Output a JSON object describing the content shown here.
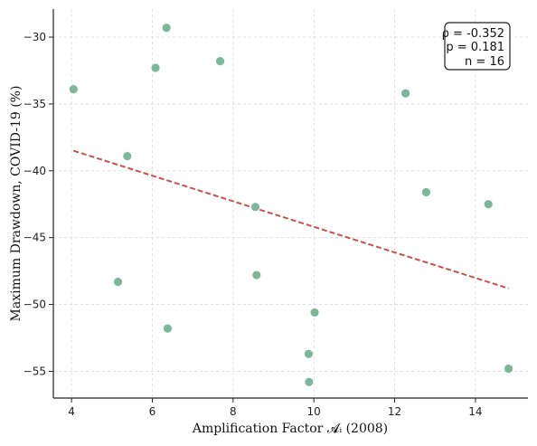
{
  "chart_data": {
    "type": "scatter",
    "xlabel": "Amplification Factor 𝓐ᵢ (2008)",
    "ylabel": "Maximum Drawdown, COVID-19 (%)",
    "xlim": [
      3.55,
      15.3
    ],
    "ylim": [
      -57.0,
      -27.9
    ],
    "x_ticks": [
      4,
      6,
      8,
      10,
      12,
      14
    ],
    "y_ticks": [
      -30,
      -35,
      -40,
      -45,
      -50,
      -55
    ],
    "grid": true,
    "point_color": "#7db79b",
    "trend_color": "#c9504c",
    "points": [
      {
        "x": 4.05,
        "y": -33.9
      },
      {
        "x": 5.15,
        "y": -48.3
      },
      {
        "x": 5.38,
        "y": -38.9
      },
      {
        "x": 6.08,
        "y": -32.3
      },
      {
        "x": 6.35,
        "y": -29.3
      },
      {
        "x": 6.38,
        "y": -51.8
      },
      {
        "x": 7.68,
        "y": -31.8
      },
      {
        "x": 8.55,
        "y": -42.7
      },
      {
        "x": 8.58,
        "y": -47.8
      },
      {
        "x": 9.87,
        "y": -53.7
      },
      {
        "x": 9.88,
        "y": -55.8
      },
      {
        "x": 10.02,
        "y": -50.6
      },
      {
        "x": 12.27,
        "y": -34.2
      },
      {
        "x": 12.78,
        "y": -41.6
      },
      {
        "x": 14.32,
        "y": -42.5
      },
      {
        "x": 14.82,
        "y": -54.8
      }
    ],
    "trend_line": {
      "x": [
        4.05,
        14.82
      ],
      "y": [
        -38.5,
        -48.8
      ]
    },
    "stats": {
      "rho_label": "ρ = -0.352",
      "p_label": "p = 0.181",
      "n_label": "n = 16",
      "placement": "top-right"
    }
  }
}
